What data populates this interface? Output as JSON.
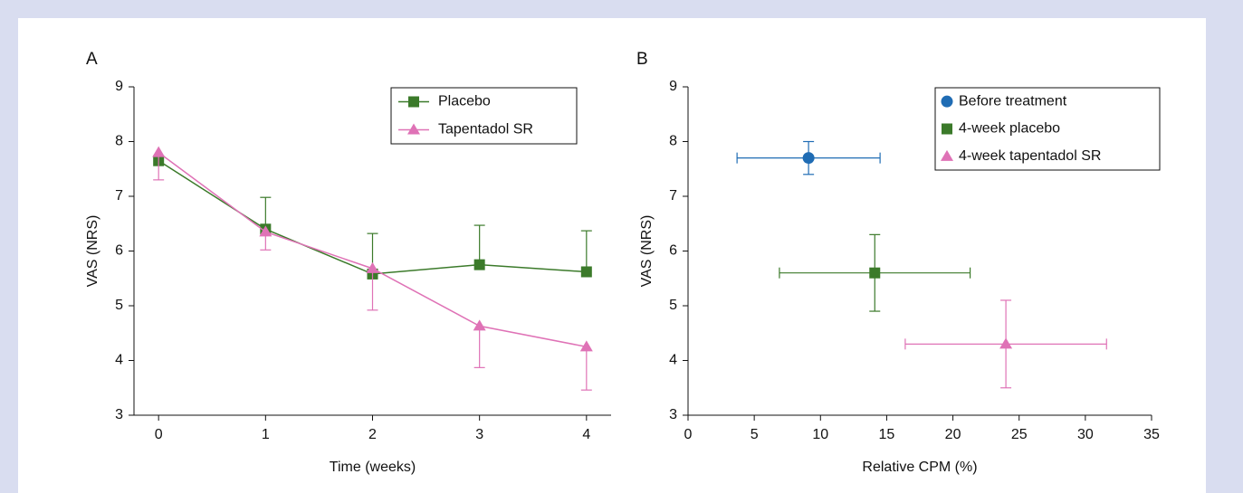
{
  "chart_data": [
    {
      "type": "line",
      "title": "A",
      "x_label": "Time (weeks)",
      "y_label": "VAS (NRS)",
      "x": [
        0,
        1,
        2,
        3,
        4
      ],
      "xlim": [
        -0.23,
        4.23
      ],
      "xticks": [
        0,
        1,
        2,
        3,
        4
      ],
      "ylim": [
        3,
        9
      ],
      "yticks": [
        3,
        4,
        5,
        6,
        7,
        8,
        9
      ],
      "legend": "upper-right",
      "series": [
        {
          "name": "Placebo",
          "color": "#3b7a2a",
          "marker": "square",
          "error_direction": "up",
          "values": [
            7.65,
            6.4,
            5.58,
            5.75,
            5.62
          ],
          "errors": [
            null,
            0.58,
            0.74,
            0.72,
            0.75
          ]
        },
        {
          "name": "Tapentadol SR",
          "color": "#df72b6",
          "marker": "triangle",
          "error_direction": "down",
          "values": [
            7.8,
            6.35,
            5.68,
            4.63,
            4.25
          ],
          "errors": [
            0.5,
            0.33,
            0.76,
            0.76,
            0.79
          ]
        }
      ]
    },
    {
      "type": "scatter",
      "title": "B",
      "x_label": "Relative CPM (%)",
      "y_label": "VAS (NRS)",
      "xlim": [
        0,
        35
      ],
      "xticks": [
        0,
        5,
        10,
        15,
        20,
        25,
        30,
        35
      ],
      "ylim": [
        3,
        9
      ],
      "yticks": [
        3,
        4,
        5,
        6,
        7,
        8,
        9
      ],
      "legend": "upper-right",
      "series": [
        {
          "name": "Before treatment",
          "color": "#1f6cb4",
          "marker": "circle",
          "x": [
            9.1
          ],
          "values": [
            7.7
          ],
          "x_errors": [
            5.4
          ],
          "errors": [
            0.3
          ]
        },
        {
          "name": "4-week placebo",
          "color": "#3b7a2a",
          "marker": "square",
          "x": [
            14.1
          ],
          "values": [
            5.6
          ],
          "x_errors": [
            7.2
          ],
          "errors": [
            0.7
          ]
        },
        {
          "name": "4-week tapentadol SR",
          "color": "#df72b6",
          "marker": "triangle",
          "x": [
            24
          ],
          "values": [
            4.3
          ],
          "x_errors": [
            7.6
          ],
          "errors": [
            0.8
          ]
        }
      ]
    }
  ]
}
